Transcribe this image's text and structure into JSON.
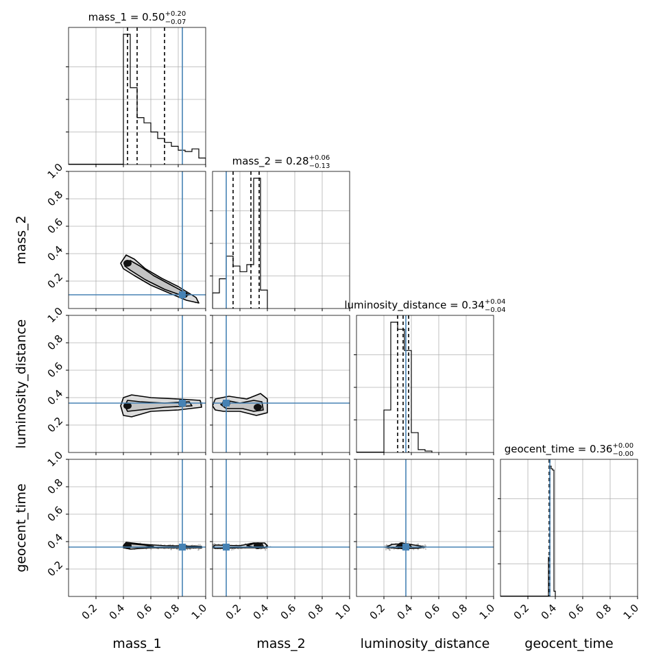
{
  "chart_data": {
    "type": "corner",
    "parameters": [
      "mass_1",
      "mass_2",
      "luminosity_distance",
      "geocent_time"
    ],
    "axis_labels": [
      "mass_1",
      "mass_2",
      "luminosity_distance",
      "geocent_time"
    ],
    "axis_range": [
      0.0,
      1.0
    ],
    "tick_values": [
      0.2,
      0.4,
      0.6,
      0.8,
      1.0
    ],
    "tick_labels": [
      "0.2",
      "0.4",
      "0.6",
      "0.8",
      "1.0"
    ],
    "grid": true,
    "truth_color": "#4682b4",
    "truths": [
      0.83,
      0.1,
      0.36,
      0.36
    ],
    "quantile_lines": [
      [
        0.43,
        0.5,
        0.7
      ],
      [
        0.15,
        0.28,
        0.34
      ],
      [
        0.3,
        0.34,
        0.38
      ],
      [
        0.355,
        0.36,
        0.36
      ]
    ],
    "titles": [
      {
        "param": "mass_1",
        "median": "0.50",
        "plus": "+0.20",
        "minus": "−0.07"
      },
      {
        "param": "mass_2",
        "median": "0.28",
        "plus": "+0.06",
        "minus": "−0.13"
      },
      {
        "param": "luminosity_distance",
        "median": "0.34",
        "plus": "+0.04",
        "minus": "−0.04"
      },
      {
        "param": "geocent_time",
        "median": "0.36",
        "plus": "+0.00",
        "minus": "−0.00"
      }
    ],
    "histograms": [
      {
        "param": "mass_1",
        "bins": [
          0.4,
          0.45,
          0.5,
          0.55,
          0.6,
          0.65,
          0.7,
          0.75,
          0.8,
          0.85,
          0.9,
          0.95
        ],
        "bin_width": 0.05,
        "counts": [
          1.0,
          0.59,
          0.36,
          0.32,
          0.25,
          0.2,
          0.17,
          0.14,
          0.11,
          0.1,
          0.12,
          0.05
        ]
      },
      {
        "param": "mass_2",
        "bins": [
          0.0,
          0.05,
          0.1,
          0.15,
          0.2,
          0.25,
          0.3,
          0.35
        ],
        "bin_width": 0.05,
        "counts": [
          0.11,
          0.21,
          0.37,
          0.3,
          0.26,
          0.31,
          0.92,
          0.13
        ]
      },
      {
        "param": "luminosity_distance",
        "bins": [
          0.2,
          0.25,
          0.3,
          0.35,
          0.4,
          0.45,
          0.5
        ],
        "bin_width": 0.05,
        "counts": [
          0.3,
          0.92,
          0.87,
          0.72,
          0.14,
          0.02,
          0.01
        ]
      },
      {
        "param": "geocent_time",
        "bins": [
          0.35,
          0.36,
          0.37,
          0.38,
          0.39
        ],
        "bin_width": 0.01,
        "counts": [
          0.3,
          1.0,
          0.98,
          0.97,
          0.04
        ]
      }
    ],
    "pair_densities": [
      {
        "x": "mass_1",
        "y": "mass_2",
        "ridge": [
          [
            0.4,
            0.34
          ],
          [
            0.5,
            0.28
          ],
          [
            0.6,
            0.22
          ],
          [
            0.7,
            0.17
          ],
          [
            0.8,
            0.11
          ],
          [
            0.92,
            0.06
          ]
        ],
        "contours": [
          [
            [
              0.38,
              0.33
            ],
            [
              0.42,
              0.39
            ],
            [
              0.48,
              0.36
            ],
            [
              0.56,
              0.29
            ],
            [
              0.68,
              0.22
            ],
            [
              0.8,
              0.16
            ],
            [
              0.93,
              0.08
            ],
            [
              0.95,
              0.04
            ],
            [
              0.86,
              0.06
            ],
            [
              0.74,
              0.11
            ],
            [
              0.6,
              0.17
            ],
            [
              0.48,
              0.24
            ],
            [
              0.4,
              0.29
            ]
          ],
          [
            [
              0.41,
              0.33
            ],
            [
              0.45,
              0.35
            ],
            [
              0.52,
              0.31
            ],
            [
              0.62,
              0.24
            ],
            [
              0.75,
              0.17
            ],
            [
              0.88,
              0.1
            ],
            [
              0.84,
              0.09
            ],
            [
              0.7,
              0.14
            ],
            [
              0.56,
              0.21
            ],
            [
              0.45,
              0.28
            ],
            [
              0.41,
              0.31
            ]
          ]
        ],
        "core": [
          [
            0.43,
            0.33
          ],
          [
            0.84,
            0.1
          ]
        ]
      },
      {
        "x": "mass_1",
        "y": "luminosity_distance",
        "ridge": [
          [
            0.42,
            0.34
          ],
          [
            0.55,
            0.345
          ],
          [
            0.7,
            0.35
          ],
          [
            0.85,
            0.355
          ],
          [
            0.97,
            0.36
          ]
        ],
        "contours": [
          [
            [
              0.38,
              0.34
            ],
            [
              0.4,
              0.4
            ],
            [
              0.46,
              0.42
            ],
            [
              0.6,
              0.4
            ],
            [
              0.8,
              0.39
            ],
            [
              0.96,
              0.38
            ],
            [
              0.97,
              0.33
            ],
            [
              0.8,
              0.31
            ],
            [
              0.6,
              0.3
            ],
            [
              0.46,
              0.26
            ],
            [
              0.4,
              0.27
            ]
          ],
          [
            [
              0.41,
              0.34
            ],
            [
              0.43,
              0.38
            ],
            [
              0.52,
              0.37
            ],
            [
              0.7,
              0.36
            ],
            [
              0.88,
              0.37
            ],
            [
              0.9,
              0.34
            ],
            [
              0.7,
              0.33
            ],
            [
              0.52,
              0.31
            ],
            [
              0.43,
              0.3
            ]
          ]
        ],
        "core": [
          [
            0.43,
            0.34
          ],
          [
            0.83,
            0.36
          ]
        ]
      },
      {
        "x": "mass_1",
        "y": "geocent_time",
        "ridge": [
          [
            0.42,
            0.37
          ],
          [
            0.6,
            0.365
          ],
          [
            0.8,
            0.36
          ],
          [
            0.97,
            0.36
          ]
        ],
        "contours": [
          [
            [
              0.4,
              0.37
            ],
            [
              0.42,
              0.395
            ],
            [
              0.55,
              0.38
            ],
            [
              0.7,
              0.37
            ],
            [
              0.97,
              0.365
            ],
            [
              0.97,
              0.355
            ],
            [
              0.6,
              0.355
            ],
            [
              0.45,
              0.345
            ],
            [
              0.4,
              0.355
            ]
          ],
          [
            [
              0.42,
              0.37
            ],
            [
              0.44,
              0.385
            ],
            [
              0.55,
              0.375
            ],
            [
              0.62,
              0.365
            ],
            [
              0.5,
              0.358
            ],
            [
              0.43,
              0.36
            ]
          ]
        ],
        "core": [
          [
            0.43,
            0.37
          ]
        ]
      },
      {
        "x": "mass_2",
        "y": "luminosity_distance",
        "ridge": [
          [
            0.02,
            0.35
          ],
          [
            0.1,
            0.355
          ],
          [
            0.2,
            0.35
          ],
          [
            0.3,
            0.34
          ],
          [
            0.36,
            0.33
          ]
        ],
        "contours": [
          [
            [
              0.0,
              0.34
            ],
            [
              0.02,
              0.39
            ],
            [
              0.12,
              0.41
            ],
            [
              0.25,
              0.39
            ],
            [
              0.35,
              0.43
            ],
            [
              0.4,
              0.39
            ],
            [
              0.4,
              0.29
            ],
            [
              0.32,
              0.27
            ],
            [
              0.2,
              0.3
            ],
            [
              0.08,
              0.3
            ],
            [
              0.02,
              0.31
            ]
          ],
          [
            [
              0.06,
              0.35
            ],
            [
              0.1,
              0.38
            ],
            [
              0.2,
              0.36
            ],
            [
              0.3,
              0.38
            ],
            [
              0.36,
              0.37
            ],
            [
              0.37,
              0.31
            ],
            [
              0.3,
              0.3
            ],
            [
              0.22,
              0.32
            ],
            [
              0.1,
              0.32
            ]
          ]
        ],
        "core": [
          [
            0.33,
            0.33
          ],
          [
            0.1,
            0.36
          ]
        ]
      },
      {
        "x": "mass_2",
        "y": "geocent_time",
        "ridge": [
          [
            0.0,
            0.365
          ],
          [
            0.15,
            0.36
          ],
          [
            0.3,
            0.37
          ],
          [
            0.4,
            0.36
          ]
        ],
        "contours": [
          [
            [
              0.0,
              0.36
            ],
            [
              0.02,
              0.375
            ],
            [
              0.2,
              0.37
            ],
            [
              0.3,
              0.39
            ],
            [
              0.38,
              0.39
            ],
            [
              0.4,
              0.37
            ],
            [
              0.38,
              0.355
            ],
            [
              0.2,
              0.355
            ],
            [
              0.02,
              0.35
            ]
          ],
          [
            [
              0.25,
              0.37
            ],
            [
              0.3,
              0.385
            ],
            [
              0.36,
              0.385
            ],
            [
              0.37,
              0.365
            ],
            [
              0.3,
              0.36
            ]
          ]
        ],
        "core": [
          [
            0.33,
            0.37
          ]
        ]
      },
      {
        "x": "luminosity_distance",
        "y": "geocent_time",
        "ridge": [
          [
            0.22,
            0.36
          ],
          [
            0.3,
            0.365
          ],
          [
            0.4,
            0.365
          ],
          [
            0.5,
            0.36
          ]
        ],
        "contours": [
          [
            [
              0.22,
              0.36
            ],
            [
              0.26,
              0.38
            ],
            [
              0.36,
              0.385
            ],
            [
              0.45,
              0.37
            ],
            [
              0.5,
              0.36
            ],
            [
              0.45,
              0.352
            ],
            [
              0.3,
              0.35
            ]
          ],
          [
            [
              0.29,
              0.365
            ],
            [
              0.31,
              0.38
            ],
            [
              0.38,
              0.38
            ],
            [
              0.4,
              0.365
            ],
            [
              0.36,
              0.355
            ],
            [
              0.31,
              0.355
            ]
          ]
        ],
        "core": [
          [
            0.33,
            0.37
          ]
        ]
      }
    ]
  }
}
